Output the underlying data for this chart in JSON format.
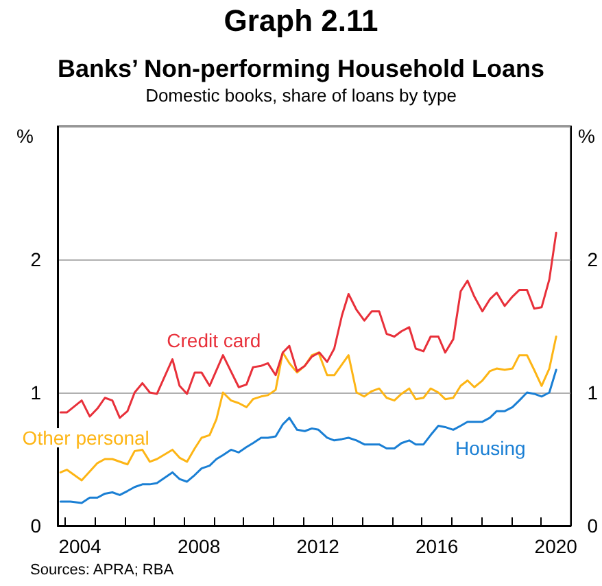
{
  "chart_data": {
    "type": "line",
    "title": "Banks’ Non-performing Household Loans",
    "subtitle": "Domestic books, share of loans by type",
    "annotations": [
      "Graph 2.11",
      "Sources: APRA; RBA"
    ],
    "ylabel": "%",
    "y2label": "%",
    "xlim": [
      2003.75,
      2021
    ],
    "xticks": [
      {
        "value": 2004,
        "label": null
      },
      {
        "value": 2004.5,
        "label": "2004"
      },
      {
        "value": 2005,
        "label": null
      },
      {
        "value": 2006,
        "label": null
      },
      {
        "value": 2007,
        "label": null
      },
      {
        "value": 2008,
        "label": null
      },
      {
        "value": 2008.5,
        "label": "2008"
      },
      {
        "value": 2009,
        "label": null
      },
      {
        "value": 2010,
        "label": null
      },
      {
        "value": 2011,
        "label": null
      },
      {
        "value": 2012,
        "label": null
      },
      {
        "value": 2012.5,
        "label": "2012"
      },
      {
        "value": 2013,
        "label": null
      },
      {
        "value": 2014,
        "label": null
      },
      {
        "value": 2015,
        "label": null
      },
      {
        "value": 2016,
        "label": null
      },
      {
        "value": 2016.5,
        "label": "2016"
      },
      {
        "value": 2017,
        "label": null
      },
      {
        "value": 2018,
        "label": null
      },
      {
        "value": 2019,
        "label": null
      },
      {
        "value": 2020,
        "label": null
      },
      {
        "value": 2020.5,
        "label": "2020"
      }
    ],
    "ylim": [
      0,
      3
    ],
    "yticks": [
      0,
      1,
      2
    ],
    "y2lim": [
      0,
      3
    ],
    "y2ticks": [
      0,
      1,
      2
    ],
    "grid": "y",
    "legend": false,
    "marker": "none",
    "line_style": "solid",
    "series": [
      {
        "name": "Credit card",
        "color": "#e8303a",
        "x": [
          2003.85,
          2004.06,
          2004.56,
          2004.83,
          2005.09,
          2005.34,
          2005.59,
          2005.84,
          2006.1,
          2006.34,
          2006.6,
          2006.85,
          2007.09,
          2007.35,
          2007.61,
          2007.85,
          2008.1,
          2008.36,
          2008.59,
          2008.86,
          2009.31,
          2009.84,
          2010.1,
          2010.32,
          2010.59,
          2010.82,
          2011.08,
          2011.32,
          2011.54,
          2011.8,
          2012.06,
          2012.3,
          2012.55,
          2012.81,
          2013.05,
          2013.31,
          2013.53,
          2013.8,
          2014.06,
          2014.31,
          2014.56,
          2014.81,
          2015.07,
          2015.31,
          2015.57,
          2015.79,
          2016.05,
          2016.29,
          2016.55,
          2016.78,
          2017.05,
          2017.3,
          2017.53,
          2017.76,
          2018.03,
          2018.28,
          2018.51,
          2018.78,
          2019.04,
          2019.27,
          2019.53,
          2019.77,
          2020.02,
          2020.28,
          2020.51
        ],
        "values": [
          0.85,
          0.85,
          0.94,
          0.82,
          0.88,
          0.96,
          0.94,
          0.81,
          0.86,
          1.0,
          1.07,
          1.0,
          0.99,
          1.12,
          1.25,
          1.05,
          0.99,
          1.15,
          1.15,
          1.05,
          1.28,
          1.04,
          1.06,
          1.19,
          1.2,
          1.22,
          1.13,
          1.3,
          1.35,
          1.16,
          1.2,
          1.27,
          1.3,
          1.23,
          1.33,
          1.58,
          1.74,
          1.62,
          1.54,
          1.61,
          1.61,
          1.44,
          1.42,
          1.46,
          1.49,
          1.33,
          1.31,
          1.42,
          1.42,
          1.3,
          1.4,
          1.76,
          1.84,
          1.72,
          1.61,
          1.7,
          1.75,
          1.65,
          1.72,
          1.77,
          1.77,
          1.63,
          1.64,
          1.85,
          2.2
        ]
      },
      {
        "name": "Other personal",
        "color": "#fdb515",
        "x": [
          2003.85,
          2004.06,
          2004.56,
          2005.09,
          2005.34,
          2005.59,
          2006.1,
          2006.34,
          2006.6,
          2006.85,
          2007.09,
          2007.61,
          2007.85,
          2008.1,
          2008.36,
          2008.59,
          2008.86,
          2009.09,
          2009.31,
          2009.58,
          2009.84,
          2010.1,
          2010.32,
          2010.59,
          2010.82,
          2011.08,
          2011.32,
          2011.54,
          2011.8,
          2012.06,
          2012.3,
          2012.52,
          2012.81,
          2013.05,
          2013.53,
          2013.8,
          2014.06,
          2014.31,
          2014.56,
          2014.81,
          2015.07,
          2015.31,
          2015.57,
          2015.79,
          2016.05,
          2016.29,
          2016.55,
          2016.78,
          2017.05,
          2017.3,
          2017.53,
          2017.76,
          2018.03,
          2018.28,
          2018.51,
          2018.78,
          2019.04,
          2019.27,
          2019.53,
          2019.77,
          2020.02,
          2020.28,
          2020.51
        ],
        "values": [
          0.4,
          0.42,
          0.34,
          0.47,
          0.5,
          0.5,
          0.46,
          0.56,
          0.57,
          0.48,
          0.5,
          0.57,
          0.51,
          0.48,
          0.58,
          0.66,
          0.68,
          0.8,
          1.0,
          0.94,
          0.92,
          0.89,
          0.95,
          0.97,
          0.98,
          1.02,
          1.3,
          1.22,
          1.15,
          1.2,
          1.28,
          1.3,
          1.13,
          1.13,
          1.28,
          1.0,
          0.97,
          1.01,
          1.03,
          0.96,
          0.94,
          0.99,
          1.03,
          0.95,
          0.96,
          1.03,
          1.0,
          0.95,
          0.96,
          1.05,
          1.09,
          1.04,
          1.09,
          1.16,
          1.18,
          1.17,
          1.18,
          1.28,
          1.28,
          1.17,
          1.05,
          1.18,
          1.42
        ]
      },
      {
        "name": "Housing",
        "color": "#1a7fd4",
        "x": [
          2003.85,
          2004.18,
          2004.56,
          2004.83,
          2005.09,
          2005.34,
          2005.59,
          2005.84,
          2006.1,
          2006.34,
          2006.6,
          2006.85,
          2007.09,
          2007.35,
          2007.61,
          2007.85,
          2008.1,
          2008.36,
          2008.59,
          2008.86,
          2009.09,
          2009.31,
          2009.58,
          2009.84,
          2010.1,
          2010.32,
          2010.59,
          2010.82,
          2011.08,
          2011.32,
          2011.54,
          2011.8,
          2012.06,
          2012.3,
          2012.52,
          2012.81,
          2013.05,
          2013.31,
          2013.53,
          2013.8,
          2014.06,
          2014.31,
          2014.56,
          2014.81,
          2015.07,
          2015.31,
          2015.57,
          2015.79,
          2016.05,
          2016.29,
          2016.55,
          2016.78,
          2017.05,
          2017.3,
          2017.53,
          2018.03,
          2018.28,
          2018.51,
          2018.78,
          2019.04,
          2019.27,
          2019.53,
          2019.77,
          2020.02,
          2020.28,
          2020.51
        ],
        "values": [
          0.18,
          0.18,
          0.17,
          0.21,
          0.21,
          0.24,
          0.25,
          0.23,
          0.26,
          0.29,
          0.31,
          0.31,
          0.32,
          0.36,
          0.4,
          0.35,
          0.33,
          0.38,
          0.43,
          0.45,
          0.5,
          0.53,
          0.57,
          0.55,
          0.59,
          0.62,
          0.66,
          0.66,
          0.67,
          0.76,
          0.81,
          0.72,
          0.71,
          0.73,
          0.72,
          0.66,
          0.64,
          0.65,
          0.66,
          0.64,
          0.61,
          0.61,
          0.61,
          0.58,
          0.58,
          0.62,
          0.64,
          0.61,
          0.61,
          0.68,
          0.75,
          0.74,
          0.72,
          0.75,
          0.78,
          0.78,
          0.81,
          0.86,
          0.86,
          0.89,
          0.94,
          1.0,
          0.99,
          0.97,
          1.0,
          1.17
        ]
      }
    ]
  }
}
